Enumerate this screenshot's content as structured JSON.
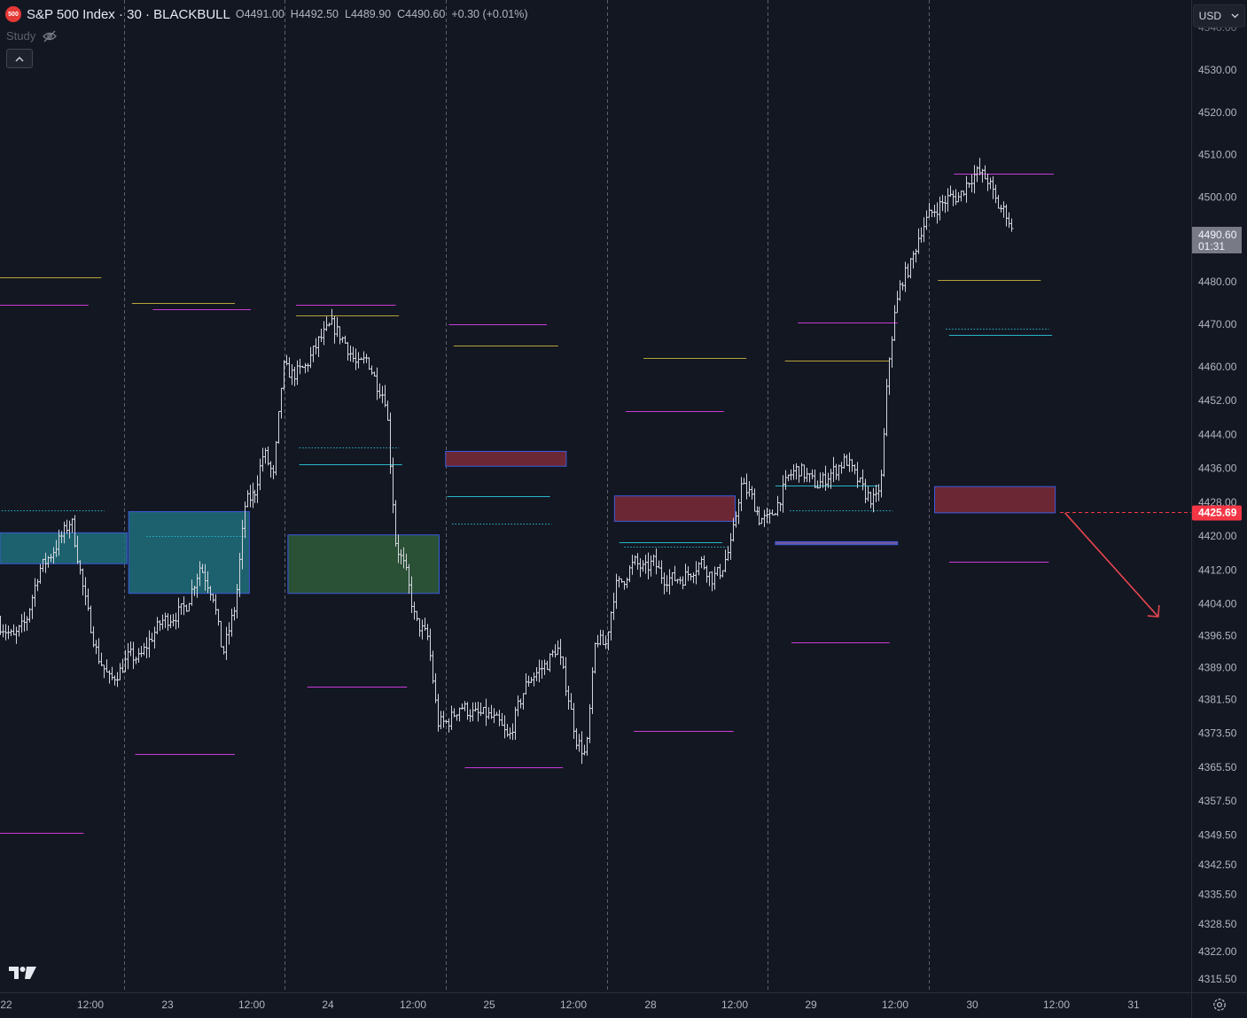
{
  "header": {
    "badge": "500",
    "title": "S&P 500 Index · 30 · BLACKBULL",
    "open_label": "O",
    "open": "4491.00",
    "high_label": "H",
    "high": "4492.50",
    "low_label": "L",
    "low": "4489.90",
    "close_label": "C",
    "close": "4490.60",
    "change": "+0.30 (+0.01%)"
  },
  "study": {
    "label": "Study",
    "hide_icon": "eye-off-icon"
  },
  "collapse_icon": "chevron-up-icon",
  "currency": {
    "value": "USD",
    "icon": "chevron-down-icon"
  },
  "logo": "TV",
  "settings_icon": "gear-icon",
  "colors": {
    "background": "#131722",
    "candle": "#d1d4dc",
    "magenta": "#c93bd6",
    "gold": "#b8a33a",
    "cyan": "#29b6c9",
    "red_zone": "#7d2a37",
    "teal_zone": "#1f6f7a",
    "green_zone": "#2f5b3a",
    "current_price": "#f23645",
    "arrow": "#e8464f"
  },
  "chart_data": {
    "type": "candlestick",
    "title": "",
    "xlabel": "",
    "ylabel": "",
    "price_ticks": [
      4530.0,
      4520.0,
      4510.0,
      4500.0,
      4480.0,
      4470.0,
      4460.0,
      4452.0,
      4444.0,
      4436.0,
      4428.0,
      4420.0,
      4412.0,
      4404.0,
      4396.5,
      4389.0,
      4381.5,
      4373.5,
      4365.5,
      4357.5,
      4349.5,
      4342.5,
      4335.5,
      4328.5,
      4322.0,
      4315.5
    ],
    "price_tick_labels": [
      "4530.00",
      "4520.00",
      "4510.00",
      "4500.00",
      "4480.00",
      "4470.00",
      "4460.00",
      "4452.00",
      "4444.00",
      "4436.00",
      "4428.00",
      "4420.00",
      "4412.00",
      "4404.00",
      "4396.50",
      "4389.00",
      "4381.50",
      "4373.50",
      "4365.50",
      "4357.50",
      "4349.50",
      "4342.50",
      "4335.50",
      "4328.50",
      "4322.00",
      "4315.50"
    ],
    "time_labels": [
      "22",
      "12:00",
      "23",
      "12:00",
      "24",
      "12:00",
      "25",
      "12:00",
      "28",
      "12:00",
      "29",
      "12:00",
      "30",
      "12:00",
      "31"
    ],
    "session_separators": [
      "23",
      "24",
      "25",
      "28",
      "29",
      "30"
    ],
    "last_price": {
      "value": "4490.60",
      "countdown": "01:31"
    },
    "current_price_line": {
      "value": 4425.69,
      "label": "4425.69"
    },
    "price_path": [
      [
        0,
        4399
      ],
      [
        0.8,
        4396
      ],
      [
        1.6,
        4400
      ],
      [
        2.4,
        4412
      ],
      [
        3.2,
        4416
      ],
      [
        3.8,
        4420
      ],
      [
        4.4,
        4424
      ],
      [
        5.2,
        4406
      ],
      [
        6.0,
        4392
      ],
      [
        6.8,
        4386
      ],
      [
        7.4,
        4388
      ],
      [
        8.0,
        4392
      ],
      [
        8.6,
        4391
      ],
      [
        9.2,
        4395
      ],
      [
        10.0,
        4400
      ],
      [
        10.8,
        4401
      ],
      [
        11.6,
        4404
      ],
      [
        12.4,
        4413
      ],
      [
        13.2,
        4406
      ],
      [
        13.8,
        4392
      ],
      [
        14.6,
        4404
      ],
      [
        15.2,
        4428
      ],
      [
        15.8,
        4430
      ],
      [
        16.4,
        4440
      ],
      [
        17.0,
        4434
      ],
      [
        17.6,
        4460
      ],
      [
        18.2,
        4458
      ],
      [
        19.0,
        4460
      ],
      [
        19.8,
        4466
      ],
      [
        20.6,
        4470
      ],
      [
        21.4,
        4466
      ],
      [
        22.2,
        4460
      ],
      [
        22.8,
        4462
      ],
      [
        23.4,
        4456
      ],
      [
        24.0,
        4452
      ],
      [
        24.6,
        4418
      ],
      [
        25.2,
        4412
      ],
      [
        25.8,
        4400
      ],
      [
        26.6,
        4396
      ],
      [
        27.2,
        4376
      ],
      [
        27.8,
        4376
      ],
      [
        28.6,
        4380
      ],
      [
        29.4,
        4378
      ],
      [
        30.2,
        4378
      ],
      [
        31.0,
        4376
      ],
      [
        31.6,
        4372
      ],
      [
        32.2,
        4380
      ],
      [
        32.8,
        4386
      ],
      [
        33.4,
        4388
      ],
      [
        34.0,
        4390
      ],
      [
        34.6,
        4394
      ],
      [
        35.2,
        4384
      ],
      [
        35.8,
        4372
      ],
      [
        36.4,
        4368
      ],
      [
        37.0,
        4396
      ],
      [
        37.6,
        4394
      ],
      [
        38.2,
        4408
      ],
      [
        38.8,
        4410
      ],
      [
        39.4,
        4414
      ],
      [
        40.0,
        4412
      ],
      [
        40.6,
        4414
      ],
      [
        41.2,
        4410
      ],
      [
        41.8,
        4410
      ],
      [
        42.4,
        4410
      ],
      [
        43.0,
        4412
      ],
      [
        43.6,
        4414
      ],
      [
        44.2,
        4410
      ],
      [
        44.8,
        4412
      ],
      [
        45.4,
        4418
      ],
      [
        46.0,
        4432
      ],
      [
        46.6,
        4430
      ],
      [
        47.2,
        4424
      ],
      [
        47.8,
        4424
      ],
      [
        48.4,
        4428
      ],
      [
        49.0,
        4434
      ],
      [
        49.6,
        4436
      ],
      [
        50.2,
        4434
      ],
      [
        50.8,
        4432
      ],
      [
        51.4,
        4434
      ],
      [
        52.0,
        4436
      ],
      [
        52.6,
        4438
      ],
      [
        53.2,
        4434
      ],
      [
        53.8,
        4430
      ],
      [
        54.4,
        4428
      ],
      [
        54.8,
        4434
      ],
      [
        55.2,
        4460
      ],
      [
        55.6,
        4472
      ],
      [
        56.0,
        4480
      ],
      [
        56.6,
        4484
      ],
      [
        57.2,
        4492
      ],
      [
        57.8,
        4496
      ],
      [
        58.4,
        4498
      ],
      [
        59.0,
        4500
      ],
      [
        59.6,
        4500
      ],
      [
        60.2,
        4504
      ],
      [
        60.8,
        4506
      ],
      [
        61.4,
        4504
      ],
      [
        62.0,
        4498
      ],
      [
        62.6,
        4496
      ],
      [
        63.0,
        4490
      ]
    ],
    "levels": [
      {
        "color": "magenta",
        "style": "solid",
        "x0": 0.0,
        "x1": 5.5,
        "y": 4474.7
      },
      {
        "color": "gold",
        "style": "solid",
        "x0": 0.0,
        "x1": 6.3,
        "y": 4481.0
      },
      {
        "color": "cyan",
        "style": "dotted",
        "x0": 0.1,
        "x1": 6.5,
        "y": 4426.0
      },
      {
        "color": "magenta",
        "style": "solid",
        "x0": 0.0,
        "x1": 5.2,
        "y": 4350.0
      },
      {
        "color": "gold",
        "style": "solid",
        "x0": 8.2,
        "x1": 14.6,
        "y": 4475.0
      },
      {
        "color": "magenta",
        "style": "solid",
        "x0": 9.5,
        "x1": 15.6,
        "y": 4473.5
      },
      {
        "color": "cyan",
        "style": "dotted",
        "x0": 9.1,
        "x1": 15.3,
        "y": 4420.0
      },
      {
        "color": "magenta",
        "style": "solid",
        "x0": 8.4,
        "x1": 14.6,
        "y": 4368.5
      },
      {
        "color": "magenta",
        "style": "solid",
        "x0": 18.4,
        "x1": 24.6,
        "y": 4474.5
      },
      {
        "color": "gold",
        "style": "solid",
        "x0": 18.4,
        "x1": 24.8,
        "y": 4472.0
      },
      {
        "color": "cyan",
        "style": "dotted",
        "x0": 18.6,
        "x1": 24.8,
        "y": 4441.0
      },
      {
        "color": "cyan",
        "style": "solid",
        "x0": 18.6,
        "x1": 25.0,
        "y": 4437.0
      },
      {
        "color": "magenta",
        "style": "solid",
        "x0": 19.1,
        "x1": 25.3,
        "y": 4384.5
      },
      {
        "color": "magenta",
        "style": "solid",
        "x0": 27.9,
        "x1": 34.0,
        "y": 4470.0
      },
      {
        "color": "gold",
        "style": "solid",
        "x0": 28.2,
        "x1": 34.7,
        "y": 4465.0
      },
      {
        "color": "cyan",
        "style": "solid",
        "x0": 27.8,
        "x1": 34.2,
        "y": 4429.5
      },
      {
        "color": "cyan",
        "style": "dotted",
        "x0": 28.1,
        "x1": 34.3,
        "y": 4423.0
      },
      {
        "color": "magenta",
        "style": "solid",
        "x0": 28.9,
        "x1": 35.0,
        "y": 4365.5
      },
      {
        "color": "gold",
        "style": "solid",
        "x0": 40.0,
        "x1": 46.4,
        "y": 4462.0
      },
      {
        "color": "magenta",
        "style": "solid",
        "x0": 38.9,
        "x1": 45.0,
        "y": 4449.5
      },
      {
        "color": "cyan",
        "style": "solid",
        "x0": 38.5,
        "x1": 44.9,
        "y": 4418.5
      },
      {
        "color": "cyan",
        "style": "dotted",
        "x0": 38.8,
        "x1": 45.2,
        "y": 4417.5
      },
      {
        "color": "magenta",
        "style": "solid",
        "x0": 39.4,
        "x1": 45.6,
        "y": 4374.0
      },
      {
        "color": "magenta",
        "style": "solid",
        "x0": 49.6,
        "x1": 55.8,
        "y": 4470.5
      },
      {
        "color": "gold",
        "style": "solid",
        "x0": 48.8,
        "x1": 55.3,
        "y": 4461.5
      },
      {
        "color": "cyan",
        "style": "solid",
        "x0": 48.2,
        "x1": 54.6,
        "y": 4432.0
      },
      {
        "color": "cyan",
        "style": "dotted",
        "x0": 49.1,
        "x1": 55.5,
        "y": 4426.0
      },
      {
        "color": "magenta",
        "style": "solid",
        "x0": 49.2,
        "x1": 55.3,
        "y": 4395.0
      },
      {
        "color": "magenta",
        "style": "solid",
        "x0": 59.3,
        "x1": 65.5,
        "y": 4505.5
      },
      {
        "color": "gold",
        "style": "solid",
        "x0": 58.3,
        "x1": 64.7,
        "y": 4480.5
      },
      {
        "color": "cyan",
        "style": "dotted",
        "x0": 58.8,
        "x1": 65.2,
        "y": 4469.0
      },
      {
        "color": "cyan",
        "style": "solid",
        "x0": 59.0,
        "x1": 65.4,
        "y": 4467.5
      },
      {
        "color": "magenta",
        "style": "solid",
        "x0": 59.0,
        "x1": 65.2,
        "y": 4414.0
      }
    ],
    "zones": [
      {
        "kind": "teal",
        "x0": 0.0,
        "x1": 7.9,
        "y_top": 4420.8,
        "y_bottom": 4413.5
      },
      {
        "kind": "teal",
        "x0": 8.0,
        "x1": 15.5,
        "y_top": 4425.8,
        "y_bottom": 4406.5
      },
      {
        "kind": "green",
        "x0": 17.9,
        "x1": 27.3,
        "y_top": 4420.3,
        "y_bottom": 4406.5
      },
      {
        "kind": "red",
        "x0": 27.7,
        "x1": 35.2,
        "y_top": 4440.0,
        "y_bottom": 4436.5
      },
      {
        "kind": "red",
        "x0": 38.2,
        "x1": 45.7,
        "y_top": 4429.5,
        "y_bottom": 4423.5
      },
      {
        "kind": "purple",
        "x0": 48.2,
        "x1": 55.8,
        "y_top": 4418.7,
        "y_bottom": 4418.0
      },
      {
        "kind": "red",
        "x0": 58.1,
        "x1": 65.6,
        "y_top": 4431.7,
        "y_bottom": 4425.5
      }
    ],
    "projection_arrow": {
      "x0": 66.2,
      "y0": 4425.5,
      "x1": 72.0,
      "y1": 4401.0
    }
  }
}
